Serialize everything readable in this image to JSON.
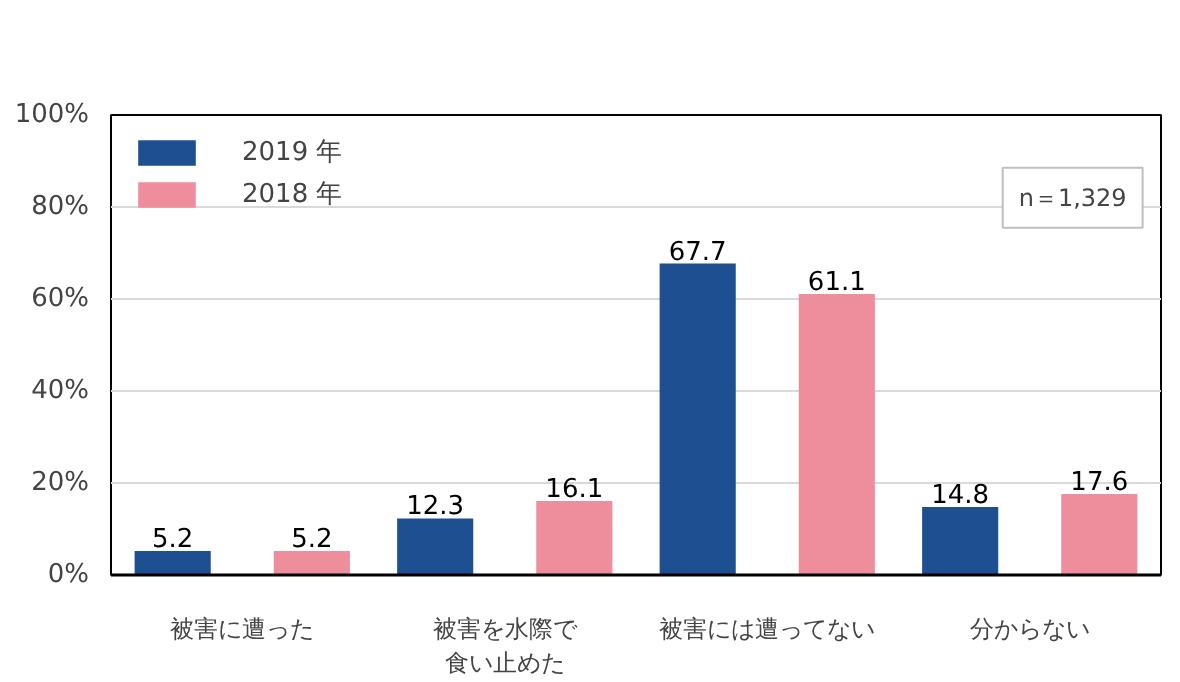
{
  "chart_data": {
    "type": "bar",
    "categories": [
      "被害に遭った",
      "被害を水際で食い止めた",
      "被害には遭ってない",
      "分からない"
    ],
    "series": [
      {
        "name": "2019 年",
        "color": "#1d4f91",
        "values": [
          5.2,
          12.3,
          67.7,
          14.8
        ]
      },
      {
        "name": "2018 年",
        "color": "#ee8d9c",
        "values": [
          5.2,
          16.1,
          61.1,
          17.6
        ]
      }
    ],
    "ylim": [
      0,
      100
    ],
    "yticks": [
      {
        "value": 0,
        "label": "0%"
      },
      {
        "value": 20,
        "label": "20%"
      },
      {
        "value": 40,
        "label": "40%"
      },
      {
        "value": 60,
        "label": "60%"
      },
      {
        "value": 80,
        "label": "80%"
      },
      {
        "value": 100,
        "label": "100%"
      }
    ],
    "grid": "y",
    "legend": "top left",
    "data_labels": true,
    "annotations": [
      "n＝1,329"
    ]
  }
}
